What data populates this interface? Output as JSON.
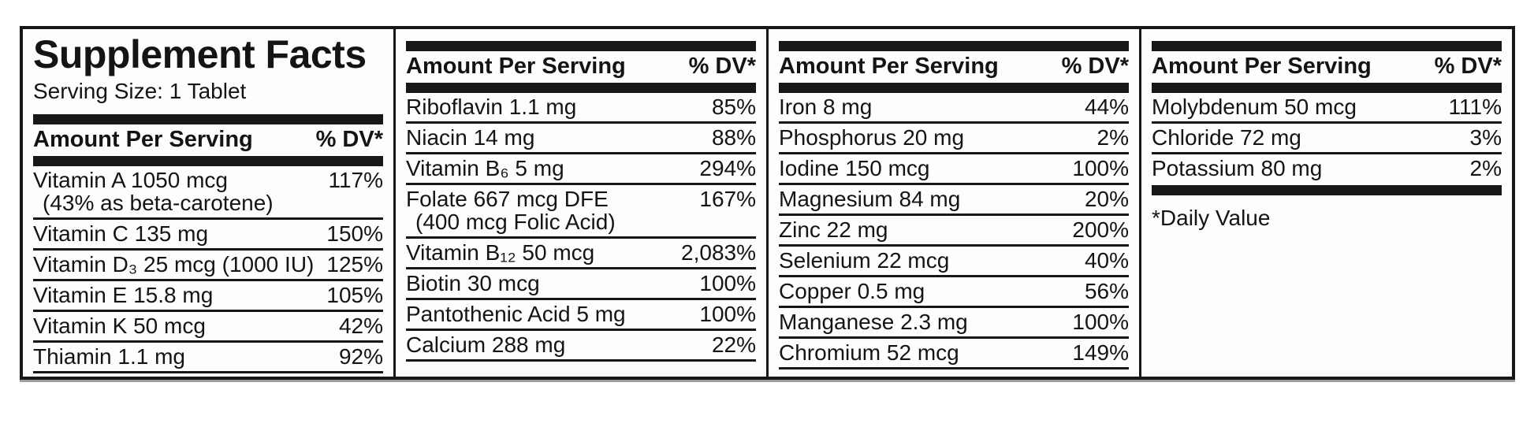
{
  "page": {
    "background_color": "#ffffff",
    "ink_color": "#171717"
  },
  "label": {
    "title": "Supplement Facts",
    "serving_size": "Serving Size: 1 Tablet",
    "header": {
      "amount": "Amount Per Serving",
      "dv": "% DV*"
    },
    "footnote": "*Daily Value",
    "columns": [
      {
        "id": "column-1-vitamins",
        "rows": [
          {
            "name": "Vitamin A 1050 mcg",
            "sub": "(43% as beta-carotene)",
            "dv": "117%"
          },
          {
            "name": "Vitamin C 135 mg",
            "dv": "150%"
          },
          {
            "name": "Vitamin D₃ 25 mcg (1000 IU)",
            "dv": "125%"
          },
          {
            "name": "Vitamin E 15.8 mg",
            "dv": "105%"
          },
          {
            "name": "Vitamin K 50 mcg",
            "dv": "42%"
          },
          {
            "name": "Thiamin 1.1 mg",
            "dv": "92%"
          }
        ]
      },
      {
        "id": "column-2-b-vitamins",
        "rows": [
          {
            "name": "Riboflavin 1.1 mg",
            "dv": "85%"
          },
          {
            "name": "Niacin 14 mg",
            "dv": "88%"
          },
          {
            "name": "Vitamin B₆ 5 mg",
            "dv": "294%"
          },
          {
            "name": "Folate 667 mcg DFE",
            "sub": "(400 mcg Folic Acid)",
            "dv": "167%"
          },
          {
            "name": "Vitamin B₁₂ 50 mcg",
            "dv": "2,083%"
          },
          {
            "name": "Biotin 30 mcg",
            "dv": "100%"
          },
          {
            "name": "Pantothenic Acid 5 mg",
            "dv": "100%"
          },
          {
            "name": "Calcium 288 mg",
            "dv": "22%"
          }
        ]
      },
      {
        "id": "column-3-minerals",
        "rows": [
          {
            "name": "Iron 8 mg",
            "dv": "44%"
          },
          {
            "name": "Phosphorus 20 mg",
            "dv": "2%"
          },
          {
            "name": "Iodine 150 mcg",
            "dv": "100%"
          },
          {
            "name": "Magnesium 84 mg",
            "dv": "20%"
          },
          {
            "name": "Zinc 22 mg",
            "dv": "200%"
          },
          {
            "name": "Selenium 22 mcg",
            "dv": "40%"
          },
          {
            "name": "Copper 0.5 mg",
            "dv": "56%"
          },
          {
            "name": "Manganese 2.3 mg",
            "dv": "100%"
          },
          {
            "name": "Chromium 52 mcg",
            "dv": "149%"
          }
        ]
      },
      {
        "id": "column-4-trace-minerals",
        "rows": [
          {
            "name": "Molybdenum 50 mcg",
            "dv": "111%"
          },
          {
            "name": "Chloride 72 mg",
            "dv": "3%"
          },
          {
            "name": "Potassium 80 mg",
            "dv": "2%"
          }
        ]
      }
    ]
  }
}
